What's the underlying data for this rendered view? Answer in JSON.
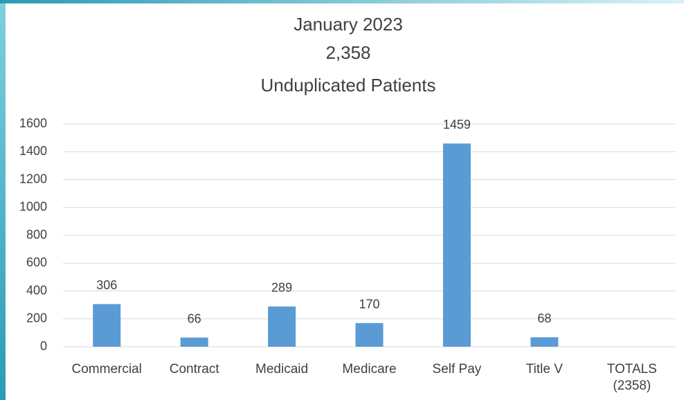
{
  "chart_data": {
    "type": "bar",
    "title": [
      "January 2023",
      "2,358",
      "Unduplicated Patients"
    ],
    "categories": [
      "Commercial",
      "Contract",
      "Medicaid",
      "Medicare",
      "Self Pay",
      "Title V",
      "TOTALS\n(2358)"
    ],
    "values": [
      306,
      66,
      289,
      170,
      1459,
      68,
      null
    ],
    "color": "#5b9bd5",
    "ylim": [
      0,
      1600
    ],
    "yticks": [
      0,
      200,
      400,
      600,
      800,
      1000,
      1200,
      1400,
      1600
    ],
    "grid": true,
    "data_labels": true
  }
}
